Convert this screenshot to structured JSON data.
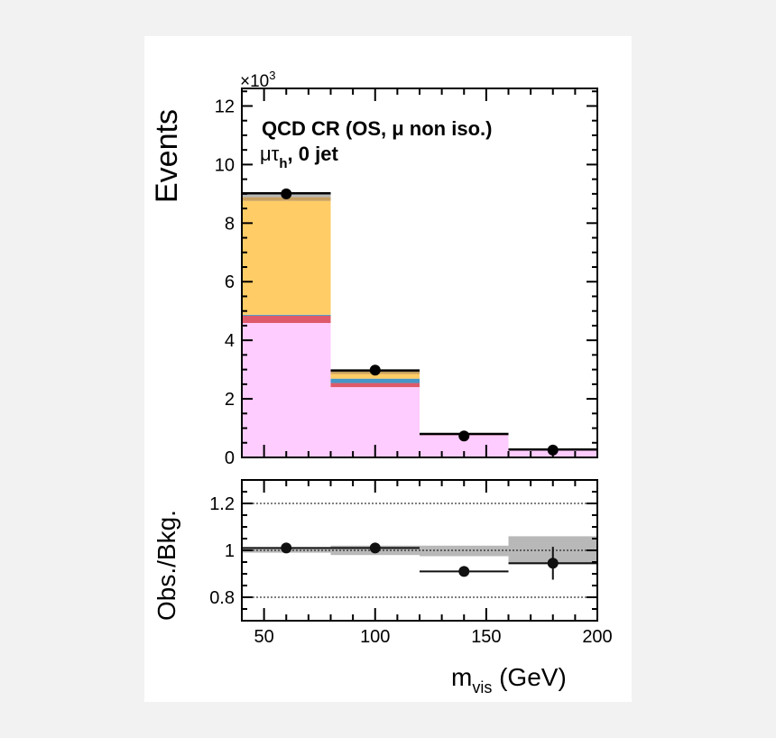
{
  "chart_data": [
    {
      "type": "bar",
      "stacked": true,
      "annotation_line1": "QCD CR (OS, μ non iso.)",
      "annotation_line2_main": "μτ",
      "annotation_line2_sub": "h",
      "annotation_line2_rest": ", 0 jet",
      "ylabel": "Events",
      "y_multiplier": "×10",
      "y_multiplier_exp": "3",
      "bin_edges": [
        40,
        80,
        120,
        160,
        200
      ],
      "ylim": [
        0,
        12.6
      ],
      "yticks": [
        "0",
        "2",
        "4",
        "6",
        "8",
        "10",
        "12"
      ],
      "series_colors": [
        "#00bcd4",
        "#ffccff",
        "#de5a6a",
        "#4496c8",
        "#ffcc66",
        "#c8a060",
        "#b8b8b8"
      ],
      "stack_cumulative": [
        [
          0.03,
          4.59,
          4.84,
          4.87,
          8.76,
          8.89,
          9.02
        ],
        [
          0.03,
          2.4,
          2.54,
          2.69,
          2.85,
          2.94,
          2.97
        ],
        [
          0.03,
          0.76,
          0.78,
          0.79,
          0.795,
          0.8,
          0.8
        ],
        [
          0.03,
          0.26,
          0.265,
          0.268,
          0.27,
          0.27,
          0.27
        ]
      ],
      "data_points": [
        9.0,
        2.98,
        0.73,
        0.25
      ]
    },
    {
      "type": "scatter",
      "ylabel": "Obs./Bkg.",
      "xlabel_main": "m",
      "xlabel_sub": "vis",
      "xlabel_rest": " (GeV)",
      "xlim": [
        40,
        200
      ],
      "ylim": [
        0.7,
        1.3
      ],
      "yticks": [
        "0.8",
        "1",
        "1.2"
      ],
      "xticks": [
        "50",
        "100",
        "150",
        "200"
      ],
      "grid_lines": [
        0.8,
        1.0,
        1.2
      ],
      "band_color": "#b8b8b8",
      "uncertainty_band": [
        [
          0.99,
          1.01
        ],
        [
          0.98,
          1.02
        ],
        [
          0.975,
          1.02
        ],
        [
          0.94,
          1.06
        ]
      ],
      "ratio": [
        1.01,
        1.01,
        0.91,
        0.945
      ],
      "ratio_err": [
        0.005,
        0.005,
        0.02,
        0.07
      ]
    }
  ]
}
